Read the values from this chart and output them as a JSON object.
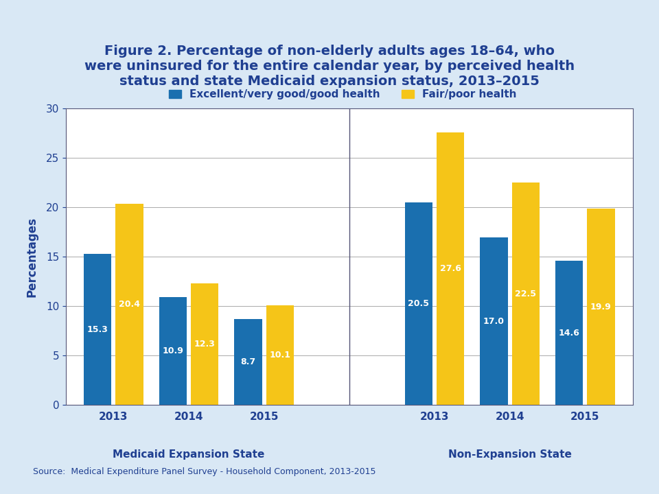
{
  "title": "Figure 2. Percentage of non-elderly adults ages 18–64, who\nwere uninsured for the entire calendar year, by perceived health\nstatus and state Medicaid expansion status, 2013–2015",
  "title_color": "#1f3f91",
  "title_fontsize": 14,
  "ylabel": "Percentages",
  "ylabel_color": "#1f3f91",
  "ylabel_fontsize": 12,
  "background_color": "#d9e8f5",
  "plot_bg_color": "#ffffff",
  "legend_labels": [
    "Excellent/very good/good health",
    "Fair/poor health"
  ],
  "legend_colors": [
    "#1a6faf",
    "#f5c518"
  ],
  "bar_color_blue": "#1a6faf",
  "bar_color_gold": "#f5c518",
  "groups": [
    {
      "label": "Medicaid Expansion State",
      "years": [
        "2013",
        "2014",
        "2015"
      ],
      "blue_values": [
        15.3,
        10.9,
        8.7
      ],
      "gold_values": [
        20.4,
        12.3,
        10.1
      ]
    },
    {
      "label": "Non-Expansion State",
      "years": [
        "2013",
        "2014",
        "2015"
      ],
      "blue_values": [
        20.5,
        17.0,
        14.6
      ],
      "gold_values": [
        27.6,
        22.5,
        19.9
      ]
    }
  ],
  "ylim": [
    0,
    30
  ],
  "yticks": [
    0,
    5,
    10,
    15,
    20,
    25,
    30
  ],
  "source_text": "Source:  Medical Expenditure Panel Survey - Household Component, 2013-2015",
  "source_fontsize": 9,
  "source_color": "#1f3f91",
  "text_color_on_bar": "#ffffff",
  "bar_label_fontsize": 9,
  "year_label_color": "#1f3f91",
  "group_label_color": "#1f3f91",
  "group_label_fontsize": 11,
  "year_label_fontsize": 11,
  "tick_color": "#1f3f91",
  "axis_color": "#1f3f91"
}
